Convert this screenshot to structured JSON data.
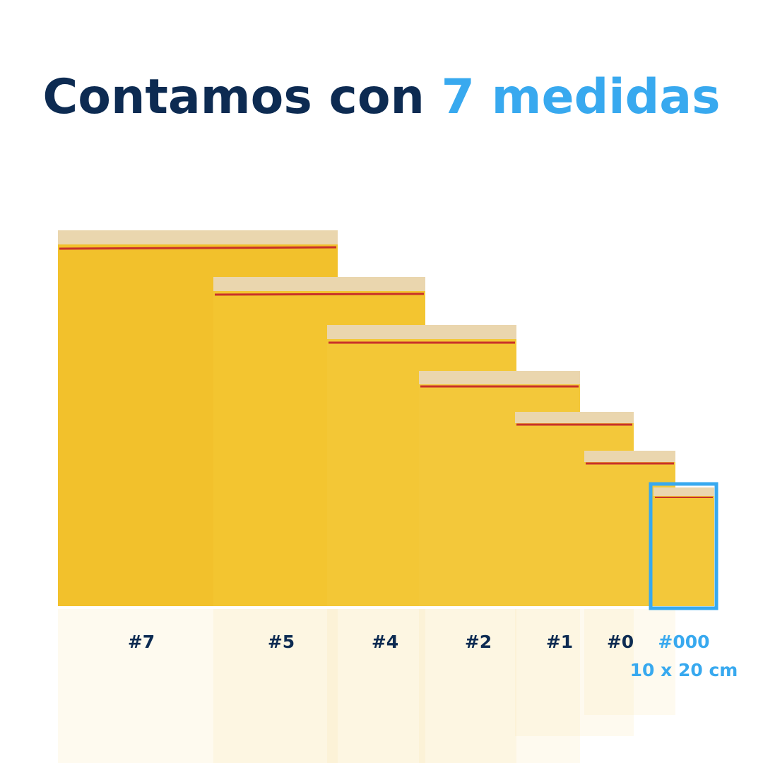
{
  "header": {
    "title_part1": "Contamos con",
    "title_part2": "7 medidas"
  },
  "sizes": [
    {
      "label": "#7"
    },
    {
      "label": "#5"
    },
    {
      "label": "#4"
    },
    {
      "label": "#2"
    },
    {
      "label": "#1"
    },
    {
      "label": "#0"
    },
    {
      "label": "#000",
      "dimensions": "10 x 20 cm"
    }
  ]
}
